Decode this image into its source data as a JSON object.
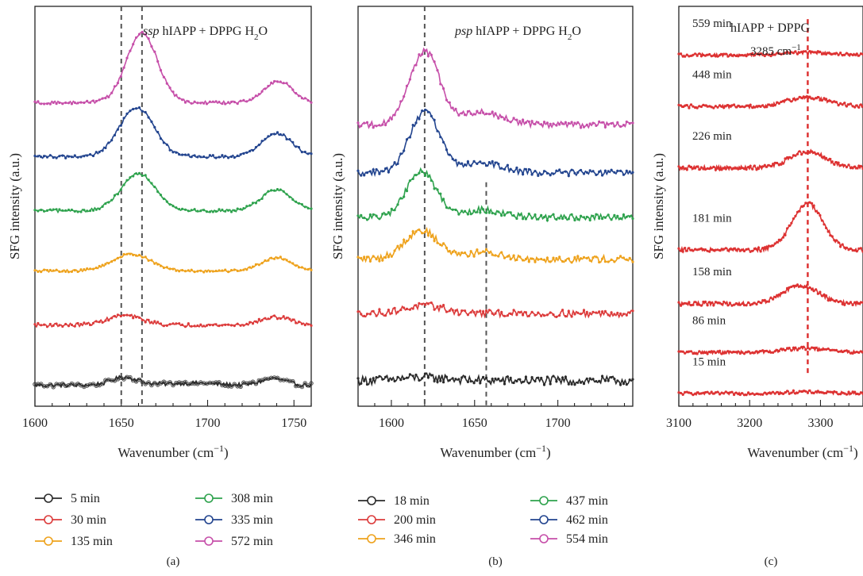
{
  "chart_data": [
    {
      "panel": "(a)",
      "type": "line",
      "title": "ssp hIAPP + DPPG H2O",
      "title_parts": {
        "italic": "ssp",
        "main": "hIAPP + DPPG H",
        "sub": "2",
        "tail": "O"
      },
      "xlabel": "Wavenumber (cm",
      "xlabel_sup": "−1",
      "xlabel_close": ")",
      "ylabel": "SFG intensity (a.u.)",
      "xlim": [
        1600,
        1760
      ],
      "xticks": [
        "1600",
        "1650",
        "1700",
        "1750"
      ],
      "reference_lines": [
        1650,
        1662
      ],
      "series": [
        {
          "name": "5 min",
          "color": "#2b2b2b",
          "offset": 0.0,
          "base": 0.0,
          "peaks": [
            [
              1652,
              0.13,
              8
            ],
            [
              1690,
              0.035,
              14
            ],
            [
              1738,
              0.11,
              7
            ]
          ],
          "noise": 0.035
        },
        {
          "name": "30 min",
          "color": "#dc3b3b",
          "offset": 1.0,
          "base": 0.0,
          "peaks": [
            [
              1652,
              0.16,
              10
            ],
            [
              1740,
              0.13,
              9
            ]
          ],
          "noise": 0.03
        },
        {
          "name": "135 min",
          "color": "#eea21c",
          "offset": 1.9,
          "base": 0.0,
          "peaks": [
            [
              1656,
              0.28,
              11
            ],
            [
              1740,
              0.22,
              9
            ]
          ],
          "noise": 0.02
        },
        {
          "name": "308 min",
          "color": "#2ea24d",
          "offset": 2.9,
          "base": 0.0,
          "peaks": [
            [
              1660,
              0.62,
              10
            ],
            [
              1740,
              0.35,
              9
            ]
          ],
          "noise": 0.025
        },
        {
          "name": "335 min",
          "color": "#23458f",
          "offset": 3.8,
          "base": 0.0,
          "peaks": [
            [
              1659,
              0.82,
              10
            ],
            [
              1740,
              0.38,
              9
            ]
          ],
          "noise": 0.025
        },
        {
          "name": "572 min",
          "color": "#c64fa9",
          "offset": 4.7,
          "base": 0.0,
          "peaks": [
            [
              1662,
              1.15,
              9
            ],
            [
              1741,
              0.36,
              8
            ]
          ],
          "noise": 0.025
        }
      ],
      "legend_columns": [
        [
          "5 min",
          "30 min",
          "135 min"
        ],
        [
          "308 min",
          "335 min",
          "572 min"
        ]
      ]
    },
    {
      "panel": "(b)",
      "type": "line",
      "title": "psp hIAPP + DPPG H2O",
      "title_parts": {
        "italic": "psp",
        "main": "hIAPP + DPPG H",
        "sub": "2",
        "tail": "O"
      },
      "xlabel": "Wavenumber (cm",
      "xlabel_sup": "−1",
      "xlabel_close": ")",
      "ylabel": "SFG intensity (a.u.)",
      "xlim": [
        1580,
        1745
      ],
      "xticks": [
        "1600",
        "1650",
        "1700"
      ],
      "reference_lines": [
        1620,
        1657
      ],
      "series": [
        {
          "name": "18 min",
          "color": "#2b2b2b",
          "offset": 0.0,
          "peaks": [
            [
              1620,
              0.05,
              15
            ]
          ],
          "noise": 0.07
        },
        {
          "name": "200 min",
          "color": "#dc3b3b",
          "offset": 1.05,
          "peaks": [
            [
              1620,
              0.12,
              12
            ]
          ],
          "noise": 0.055
        },
        {
          "name": "346 min",
          "color": "#eea21c",
          "offset": 1.9,
          "peaks": [
            [
              1618,
              0.45,
              10
            ],
            [
              1655,
              0.1,
              12
            ]
          ],
          "noise": 0.055
        },
        {
          "name": "437 min",
          "color": "#2ea24d",
          "offset": 2.55,
          "peaks": [
            [
              1618,
              0.72,
              9
            ],
            [
              1655,
              0.12,
              12
            ]
          ],
          "noise": 0.05
        },
        {
          "name": "462 min",
          "color": "#23458f",
          "offset": 3.25,
          "peaks": [
            [
              1620,
              0.95,
              9
            ],
            [
              1655,
              0.15,
              12
            ]
          ],
          "noise": 0.05
        },
        {
          "name": "554 min",
          "color": "#c64fa9",
          "offset": 4.0,
          "peaks": [
            [
              1620,
              1.15,
              9
            ],
            [
              1655,
              0.2,
              12
            ]
          ],
          "noise": 0.05
        }
      ],
      "legend_columns": [
        [
          "18 min",
          "200 min",
          "346 min"
        ],
        [
          "437 min",
          "462 min",
          "554 min"
        ]
      ]
    },
    {
      "panel": "(c)",
      "type": "line",
      "title": "hIAPP + DPPG",
      "peak_label": "3285 cm",
      "peak_label_sup": "−1",
      "xlabel": "Wavenumber (cm",
      "xlabel_sup": "−1",
      "xlabel_close": ")",
      "ylabel": "SFG intensity (a.u.)",
      "xlim": [
        3100,
        3360
      ],
      "xticks": [
        "3100",
        "3200",
        "3300"
      ],
      "reference_lines": [
        3282
      ],
      "series": [
        {
          "name": "15 min",
          "color": "#dd3333",
          "offset": 0.0,
          "peaks": [
            [
              3280,
              0.03,
              30
            ]
          ],
          "noise": 0.03
        },
        {
          "name": "86 min",
          "color": "#dd3333",
          "offset": 0.8,
          "peaks": [
            [
              3280,
              0.08,
              30
            ]
          ],
          "noise": 0.03
        },
        {
          "name": "158 min",
          "color": "#dd3333",
          "offset": 1.75,
          "peaks": [
            [
              3272,
              0.35,
              25
            ]
          ],
          "noise": 0.04
        },
        {
          "name": "181 min",
          "color": "#dd3333",
          "offset": 2.8,
          "peaks": [
            [
              3282,
              0.9,
              22
            ]
          ],
          "noise": 0.04
        },
        {
          "name": "226 min",
          "color": "#dd3333",
          "offset": 4.4,
          "peaks": [
            [
              3282,
              0.32,
              25
            ]
          ],
          "noise": 0.04
        },
        {
          "name": "448 min",
          "color": "#dd3333",
          "offset": 5.6,
          "peaks": [
            [
              3282,
              0.18,
              28
            ]
          ],
          "noise": 0.035
        },
        {
          "name": "559 min",
          "color": "#dd3333",
          "offset": 6.6,
          "peaks": [
            [
              3282,
              0.05,
              30
            ]
          ],
          "noise": 0.03
        }
      ]
    }
  ]
}
